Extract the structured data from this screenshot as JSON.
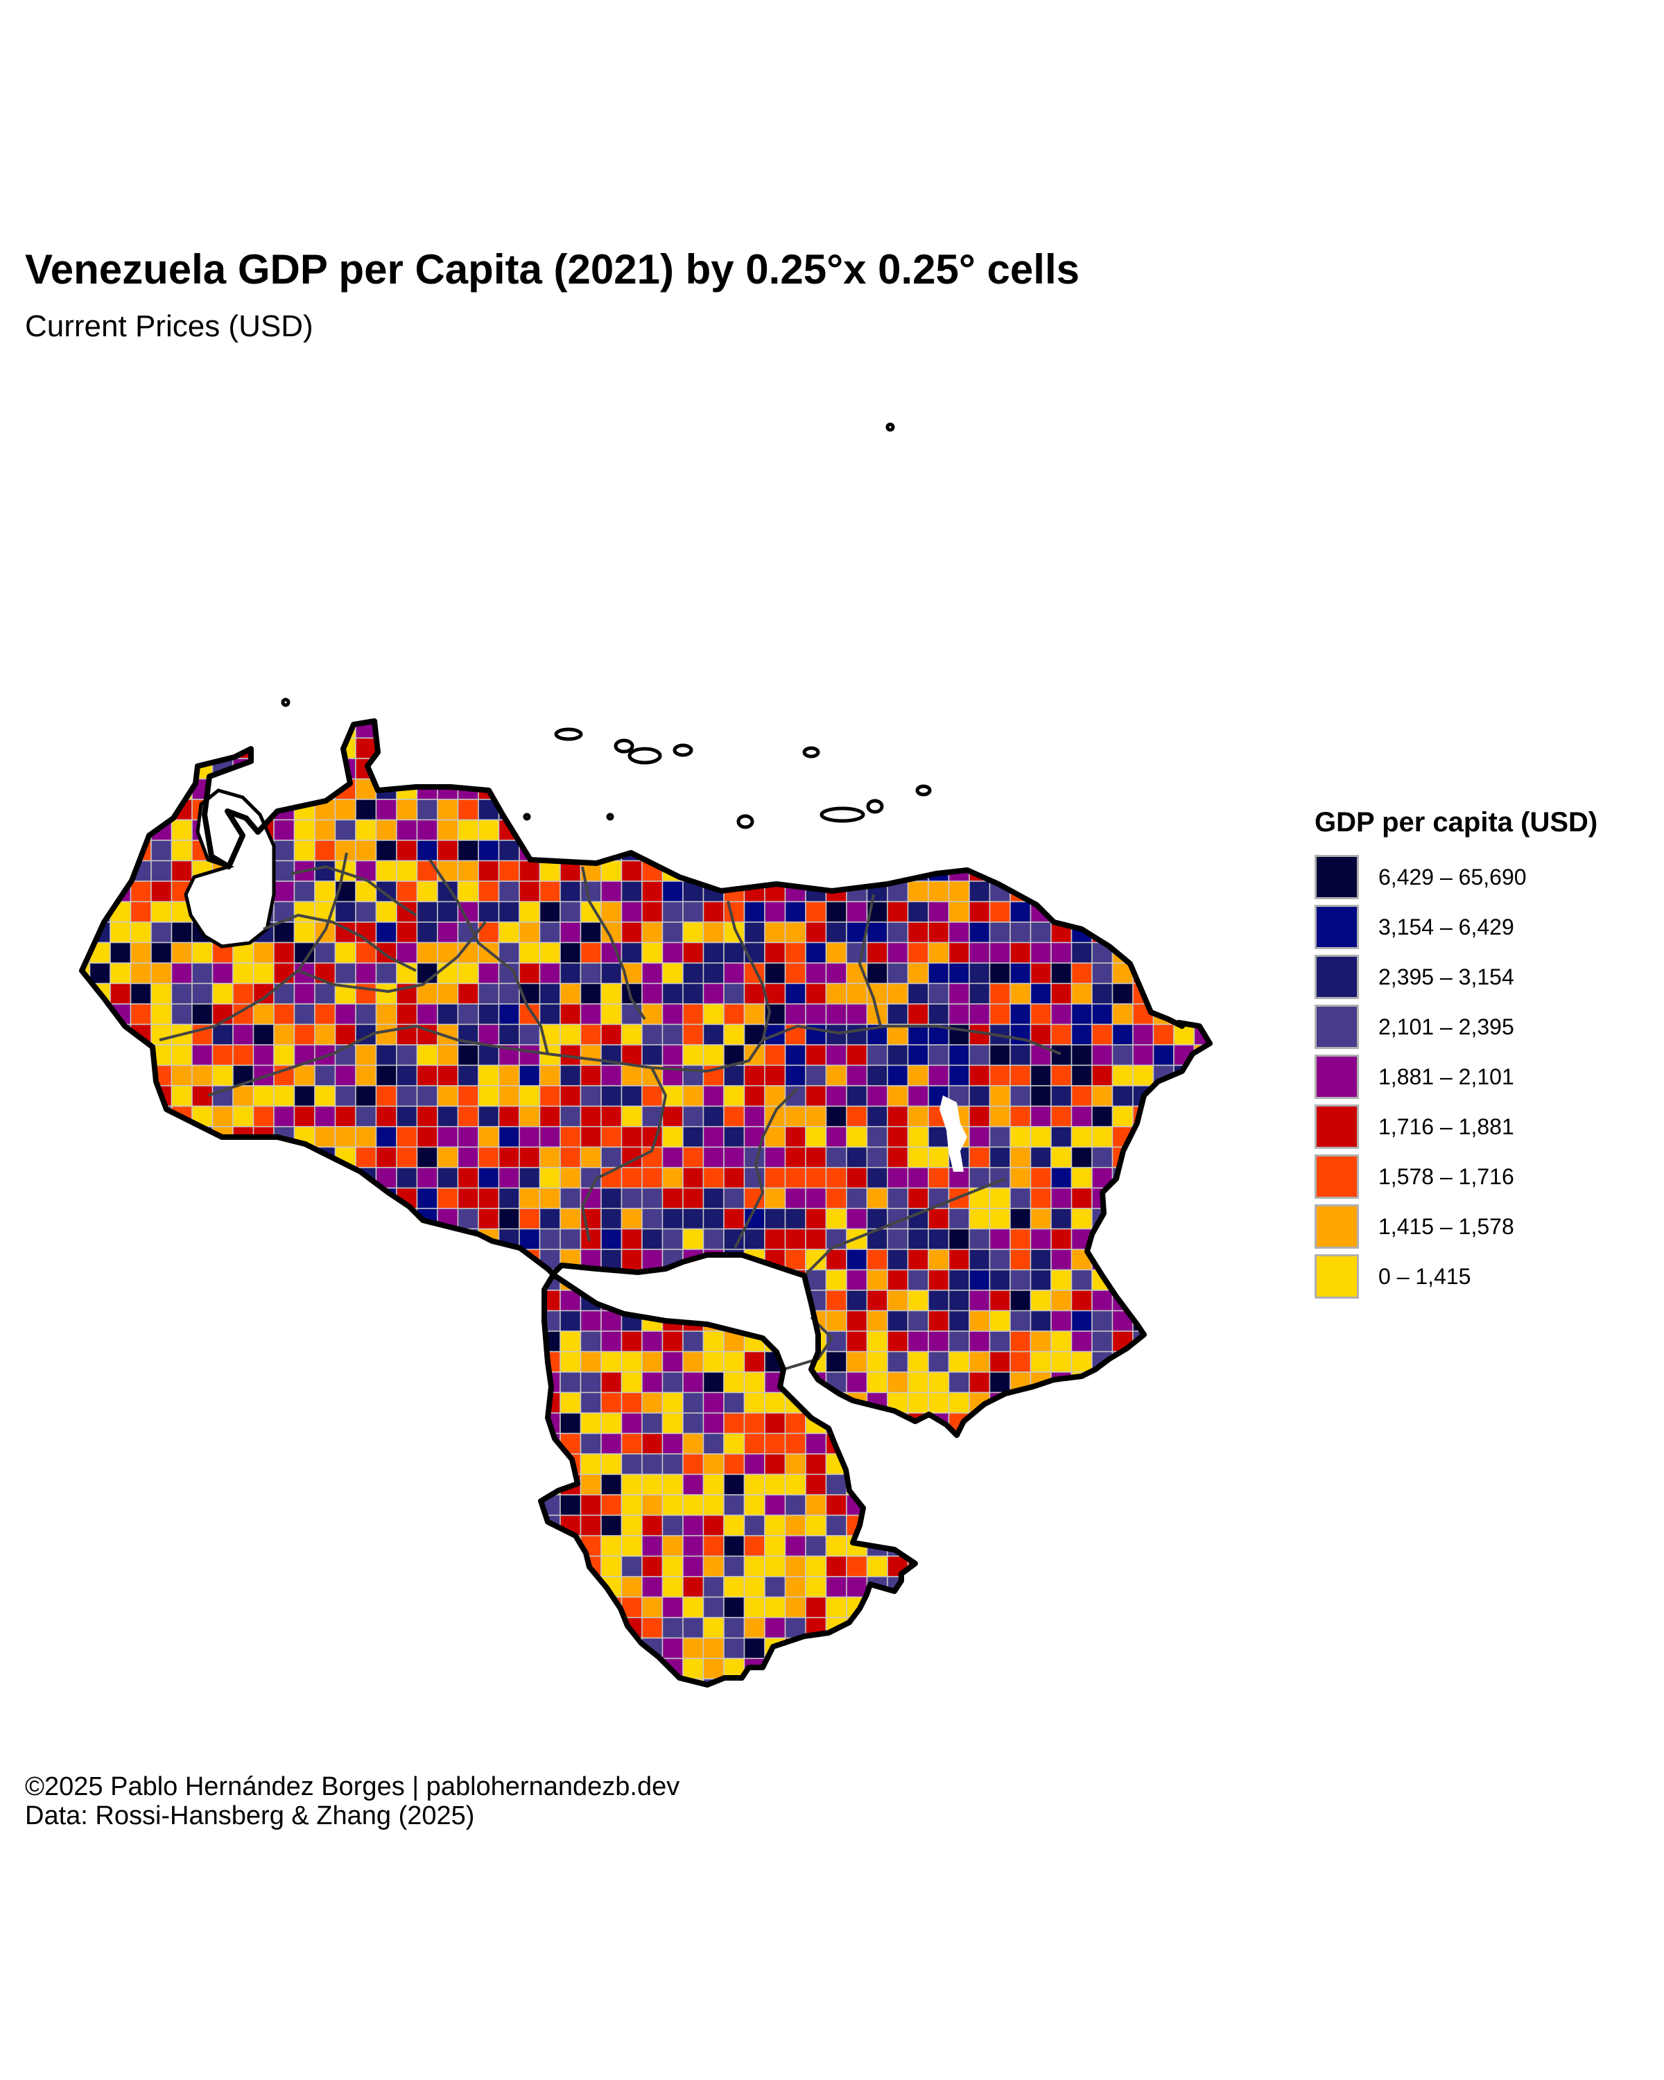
{
  "title": "Venezuela GDP per Capita (2021) by 0.25°x 0.25° cells",
  "subtitle": "Current Prices (USD)",
  "legend": {
    "title": "GDP per capita (USD)",
    "items": [
      {
        "label": "6,429 – 65,690",
        "color": "#03023a"
      },
      {
        "label": "3,154 – 6,429",
        "color": "#000884"
      },
      {
        "label": "2,395 – 3,154",
        "color": "#19196e"
      },
      {
        "label": "2,101 – 2,395",
        "color": "#473c8b"
      },
      {
        "label": "1,881 – 2,101",
        "color": "#8b008b"
      },
      {
        "label": "1,716 – 1,881",
        "color": "#cd0000"
      },
      {
        "label": "1,578 – 1,716",
        "color": "#ff4500"
      },
      {
        "label": "1,415 – 1,578",
        "color": "#ffa500"
      },
      {
        "label": "0 – 1,415",
        "color": "#ffd700"
      }
    ]
  },
  "caption": {
    "line1": "©2025 Pablo Hernández Borges | pablohernandezb.dev",
    "line2": "Data: Rossi-Hansberg & Zhang (2025)"
  }
}
